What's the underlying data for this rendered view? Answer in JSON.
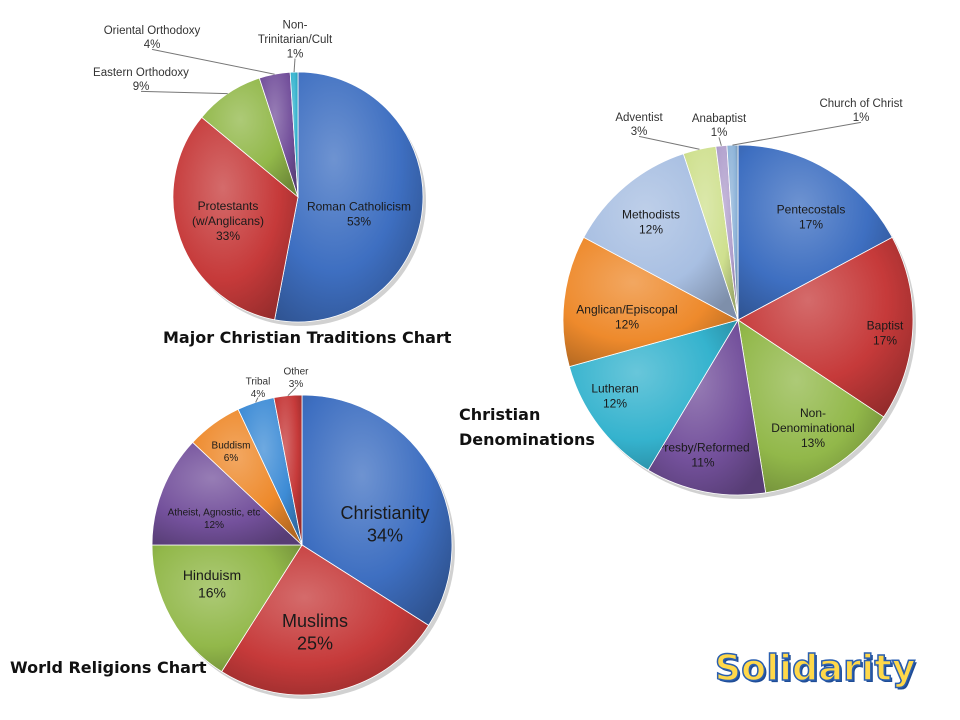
{
  "brand": "Solidarity",
  "colors": {
    "blue": "#3E6FC1",
    "red": "#C63A3A",
    "green": "#92B84A",
    "purple": "#74519C",
    "cyan": "#35B3CE",
    "orange": "#EE8A2C",
    "lightblue": "#A8BFE2",
    "lightgreen": "#CFE08F",
    "steel": "#8DB3D8",
    "olive": "#8E8E56"
  },
  "chart_data": [
    {
      "type": "pie",
      "title": "Major Christian Traditions Chart",
      "slices": [
        {
          "name": "Roman Catholicism",
          "value": 53,
          "pct": "53%",
          "color": "#3E6FC1"
        },
        {
          "name": "Protestants (w/Anglicans)",
          "value": 33,
          "pct": "33%",
          "color": "#C63A3A"
        },
        {
          "name": "Eastern Orthodoxy",
          "value": 9,
          "pct": "9%",
          "color": "#92B84A"
        },
        {
          "name": "Oriental Orthodoxy",
          "value": 4,
          "pct": "4%",
          "color": "#74519C"
        },
        {
          "name": "Non-Trinitarian/Cult",
          "value": 1,
          "pct": "1%",
          "color": "#35B3CE"
        }
      ]
    },
    {
      "type": "pie",
      "title": "Christian Denominations",
      "slices": [
        {
          "name": "Pentecostals",
          "value": 17,
          "pct": "17%",
          "color": "#3E6FC1"
        },
        {
          "name": "Baptist",
          "value": 17,
          "pct": "17%",
          "color": "#C63A3A"
        },
        {
          "name": "Non-Denominational",
          "value": 13,
          "pct": "13%",
          "color": "#92B84A"
        },
        {
          "name": "Presby/Reformed",
          "value": 11,
          "pct": "11%",
          "color": "#74519C"
        },
        {
          "name": "Lutheran",
          "value": 12,
          "pct": "12%",
          "color": "#35B3CE"
        },
        {
          "name": "Anglican/Episcopal",
          "value": 12,
          "pct": "12%",
          "color": "#EE8A2C"
        },
        {
          "name": "Methodists",
          "value": 12,
          "pct": "12%",
          "color": "#A8BFE2"
        },
        {
          "name": "Adventist",
          "value": 3,
          "pct": "3%",
          "color": "#CFE08F"
        },
        {
          "name": "Anabaptist",
          "value": 1,
          "pct": "1%",
          "color": "#B09FCC"
        },
        {
          "name": "Church of Christ",
          "value": 1,
          "pct": "1%",
          "color": "#8DB3D8"
        }
      ]
    },
    {
      "type": "pie",
      "title": "World Religions Chart",
      "slices": [
        {
          "name": "Christianity",
          "value": 34,
          "pct": "34%",
          "color": "#3E6FC1"
        },
        {
          "name": "Muslims",
          "value": 25,
          "pct": "25%",
          "color": "#C63A3A"
        },
        {
          "name": "Hinduism",
          "value": 16,
          "pct": "16%",
          "color": "#92B84A"
        },
        {
          "name": "Atheist, Agnostic, etc",
          "value": 12,
          "pct": "12%",
          "color": "#74519C"
        },
        {
          "name": "Buddism",
          "value": 6,
          "pct": "6%",
          "color": "#EE8A2C"
        },
        {
          "name": "Tribal",
          "value": 4,
          "pct": "4%",
          "color": "#3E8CD6"
        },
        {
          "name": "Other",
          "value": 3,
          "pct": "3%",
          "color": "#C63A3A"
        }
      ]
    }
  ]
}
